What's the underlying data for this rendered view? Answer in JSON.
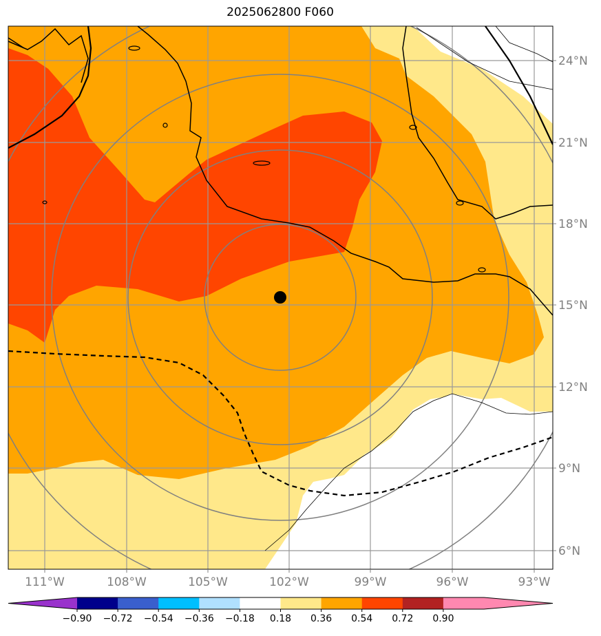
{
  "title": "2025062800 F060",
  "map": {
    "lat_labels": [
      "24°N",
      "21°N",
      "18°N",
      "15°N",
      "12°N",
      "9°N",
      "6°N"
    ],
    "lon_labels": [
      "111°W",
      "108°W",
      "105°W",
      "102°W",
      "99°W",
      "96°W",
      "93°W"
    ],
    "center_marker": {
      "lon": -102.3,
      "lat": 15.3
    },
    "range_rings": 4,
    "fill_colors": {
      "0.18-0.36": "#ffe88a",
      "0.36-0.54": "#ffa500",
      "0.54-0.72": "#ff4500",
      "none": "#ffffff"
    }
  },
  "colorbar": {
    "ticks": [
      "−0.90",
      "−0.72",
      "−0.54",
      "−0.36",
      "−0.18",
      "0.18",
      "0.36",
      "0.54",
      "0.72",
      "0.90"
    ],
    "colors": [
      "#9932cc",
      "#00008b",
      "#3a5fcd",
      "#00bfff",
      "#b0e0ff",
      "#ffffff",
      "#ffe88a",
      "#ffa500",
      "#ff4500",
      "#b22222",
      "#ff88b0",
      "#ff88b0"
    ]
  }
}
